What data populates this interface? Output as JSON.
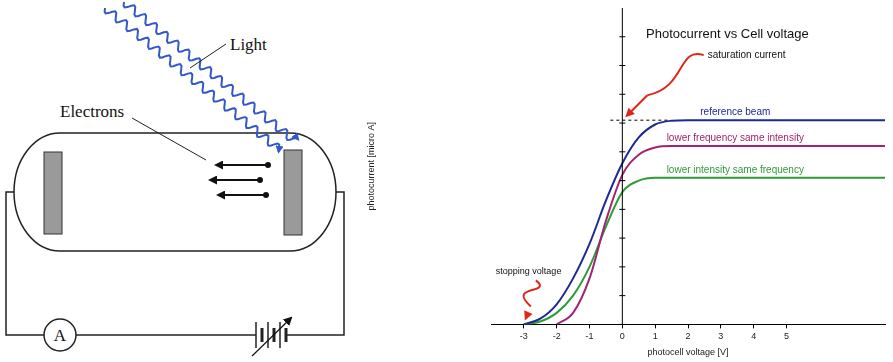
{
  "diagram": {
    "light": "Light",
    "electrons": "Electrons",
    "ammeter": "A"
  },
  "chart_data": {
    "type": "line",
    "title": "Photocurrent vs Cell voltage",
    "x_label": "photocell voltage [V]",
    "y_label": "photocurrent [micro A]",
    "xlim": [
      -4,
      8
    ],
    "xticks": [
      -3,
      -2,
      -1,
      0,
      1,
      2,
      3,
      4,
      5
    ],
    "ylim": [
      0,
      11
    ],
    "yticks": [
      0,
      1,
      2,
      3,
      4,
      5,
      6,
      7,
      8,
      9,
      10
    ],
    "tick_labels": "x",
    "grid": false,
    "annotations": [
      "saturation current",
      "stopping voltage"
    ],
    "series": [
      {
        "name": "reference beam",
        "color": "#1f2a8f",
        "marker": "none",
        "line_style": "solid",
        "x": [
          -3,
          -2.5,
          -2,
          -1.5,
          -1,
          -0.5,
          0,
          0.5,
          1,
          1.5,
          2,
          3,
          4,
          5,
          6,
          7,
          8
        ],
        "values": [
          0,
          0.2,
          0.7,
          1.6,
          2.8,
          4.3,
          5.6,
          6.5,
          6.95,
          7.08,
          7.1,
          7.1,
          7.1,
          7.1,
          7.1,
          7.1,
          7.1
        ]
      },
      {
        "name": "lower frequency same intensity",
        "color": "#a0256f",
        "marker": "none",
        "line_style": "solid",
        "x": [
          -2,
          -1.5,
          -1,
          -0.5,
          0,
          0.5,
          1,
          1.5,
          2,
          3,
          4,
          5,
          6,
          7,
          8
        ],
        "values": [
          0,
          0.4,
          1.6,
          3.6,
          5.2,
          5.9,
          6.15,
          6.2,
          6.2,
          6.2,
          6.2,
          6.2,
          6.2,
          6.2,
          6.2
        ]
      },
      {
        "name": "lower intensity same frequency",
        "color": "#2f9b3a",
        "marker": "none",
        "line_style": "solid",
        "x": [
          -3,
          -2.5,
          -2,
          -1.5,
          -1,
          -0.5,
          0,
          0.5,
          1,
          1.5,
          2,
          3,
          4,
          5,
          6,
          7,
          8
        ],
        "values": [
          0,
          0.1,
          0.4,
          1.0,
          2.0,
          3.4,
          4.6,
          5.0,
          5.1,
          5.1,
          5.1,
          5.1,
          5.1,
          5.1,
          5.1,
          5.1,
          5.1
        ]
      }
    ]
  }
}
